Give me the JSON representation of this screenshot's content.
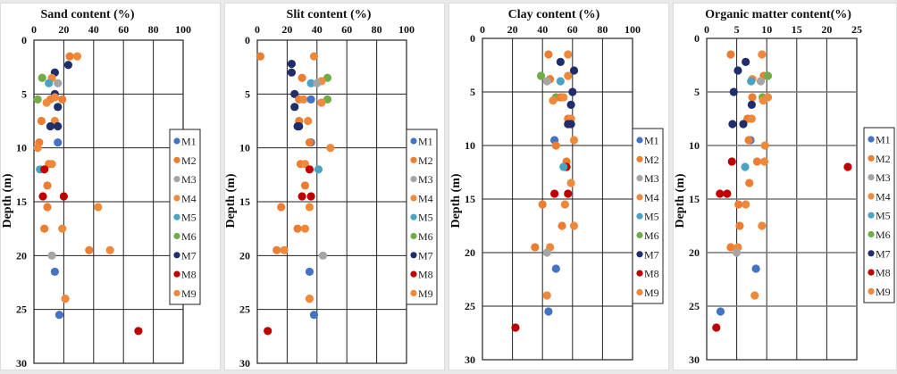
{
  "legend": [
    {
      "name": "M1",
      "color": "#4472C4"
    },
    {
      "name": "M2",
      "color": "#ED7D31"
    },
    {
      "name": "M3",
      "color": "#A5A5A5"
    },
    {
      "name": "M4",
      "color": "#F08A3C"
    },
    {
      "name": "M5",
      "color": "#4BA3C3"
    },
    {
      "name": "M6",
      "color": "#70AD47"
    },
    {
      "name": "M7",
      "color": "#1F2D6B"
    },
    {
      "name": "M8",
      "color": "#C00000"
    },
    {
      "name": "M9",
      "color": "#F0883A"
    }
  ],
  "chart_data": [
    {
      "type": "scatter",
      "title": "Sand content (%)",
      "xlabel": "",
      "ylabel": "Depth (m)",
      "xlim": [
        0,
        100
      ],
      "ylim": [
        0,
        30
      ],
      "y_inverted": true,
      "xticks": [
        "0",
        "20",
        "40",
        "60",
        "80",
        "100"
      ],
      "yticks": [
        "0",
        "5",
        "10",
        "15",
        "20",
        "25",
        "30"
      ],
      "grid": true,
      "legend_position": "right",
      "points": [
        {
          "series": "M2",
          "x": 24,
          "y": 1.5
        },
        {
          "series": "M9",
          "x": 29,
          "y": 1.5
        },
        {
          "series": "M7",
          "x": 23,
          "y": 2.3
        },
        {
          "series": "M7",
          "x": 14,
          "y": 3
        },
        {
          "series": "M6",
          "x": 5.5,
          "y": 3.5
        },
        {
          "series": "M4",
          "x": 12,
          "y": 3.5
        },
        {
          "series": "M5",
          "x": 10,
          "y": 4
        },
        {
          "series": "M3",
          "x": 16,
          "y": 4
        },
        {
          "series": "M7",
          "x": 14,
          "y": 5
        },
        {
          "series": "M6",
          "x": 2.5,
          "y": 5.5
        },
        {
          "series": "M2",
          "x": 11,
          "y": 5.5
        },
        {
          "series": "M9",
          "x": 14,
          "y": 5.3
        },
        {
          "series": "M4",
          "x": 8.5,
          "y": 5.8
        },
        {
          "series": "M2",
          "x": 19,
          "y": 5.5
        },
        {
          "series": "M7",
          "x": 16,
          "y": 6.2
        },
        {
          "series": "M2",
          "x": 5,
          "y": 7.5
        },
        {
          "series": "M9",
          "x": 14,
          "y": 7.5
        },
        {
          "series": "M7",
          "x": 11,
          "y": 8
        },
        {
          "series": "M7",
          "x": 16,
          "y": 8
        },
        {
          "series": "M2",
          "x": 3.5,
          "y": 9.5
        },
        {
          "series": "M9",
          "x": 2.5,
          "y": 10
        },
        {
          "series": "M1",
          "x": 16,
          "y": 9.5
        },
        {
          "series": "M2",
          "x": 10,
          "y": 11.5
        },
        {
          "series": "M9",
          "x": 12,
          "y": 11.5
        },
        {
          "series": "M5",
          "x": 4,
          "y": 12
        },
        {
          "series": "M8",
          "x": 7,
          "y": 12
        },
        {
          "series": "M2",
          "x": 9,
          "y": 13.5
        },
        {
          "series": "M8",
          "x": 6,
          "y": 14.5
        },
        {
          "series": "M8",
          "x": 20,
          "y": 14.5
        },
        {
          "series": "M2",
          "x": 9,
          "y": 15.5
        },
        {
          "series": "M9",
          "x": 43,
          "y": 15.5
        },
        {
          "series": "M2",
          "x": 7,
          "y": 17.5
        },
        {
          "series": "M9",
          "x": 19,
          "y": 17.5
        },
        {
          "series": "M2",
          "x": 37,
          "y": 19.5
        },
        {
          "series": "M9",
          "x": 51,
          "y": 19.5
        },
        {
          "series": "M3",
          "x": 12,
          "y": 20
        },
        {
          "series": "M1",
          "x": 14,
          "y": 21.5
        },
        {
          "series": "M9",
          "x": 21,
          "y": 24
        },
        {
          "series": "M1",
          "x": 17,
          "y": 25.5
        },
        {
          "series": "M8",
          "x": 70,
          "y": 27
        }
      ]
    },
    {
      "type": "scatter",
      "title": "Slit content (%)",
      "xlabel": "",
      "ylabel": "Depth (m)",
      "xlim": [
        0,
        100
      ],
      "ylim": [
        0,
        30
      ],
      "y_inverted": true,
      "xticks": [
        "0",
        "20",
        "40",
        "60",
        "80",
        "100"
      ],
      "yticks": [
        "0",
        "5",
        "10",
        "15",
        "20",
        "25",
        "30"
      ],
      "grid": true,
      "legend_position": "right",
      "points": [
        {
          "series": "M2",
          "x": 2,
          "y": 1.5
        },
        {
          "series": "M9",
          "x": 38,
          "y": 1.5
        },
        {
          "series": "M7",
          "x": 23,
          "y": 2.2
        },
        {
          "series": "M7",
          "x": 23,
          "y": 3
        },
        {
          "series": "M2",
          "x": 30,
          "y": 3.5
        },
        {
          "series": "M6",
          "x": 47,
          "y": 3.5
        },
        {
          "series": "M4",
          "x": 43,
          "y": 3.8
        },
        {
          "series": "M5",
          "x": 36,
          "y": 4
        },
        {
          "series": "M3",
          "x": 40,
          "y": 4
        },
        {
          "series": "M7",
          "x": 25,
          "y": 5
        },
        {
          "series": "M2",
          "x": 28,
          "y": 5.5
        },
        {
          "series": "M9",
          "x": 31,
          "y": 5.5
        },
        {
          "series": "M1",
          "x": 36,
          "y": 5.5
        },
        {
          "series": "M6",
          "x": 47,
          "y": 5.5
        },
        {
          "series": "M4",
          "x": 43,
          "y": 5.8
        },
        {
          "series": "M7",
          "x": 25,
          "y": 6.2
        },
        {
          "series": "M2",
          "x": 28,
          "y": 7.5
        },
        {
          "series": "M9",
          "x": 34,
          "y": 7.5
        },
        {
          "series": "M7",
          "x": 27,
          "y": 8
        },
        {
          "series": "M7",
          "x": 28,
          "y": 8
        },
        {
          "series": "M1",
          "x": 36,
          "y": 9.5
        },
        {
          "series": "M2",
          "x": 35,
          "y": 9.5
        },
        {
          "series": "M9",
          "x": 49,
          "y": 10
        },
        {
          "series": "M2",
          "x": 29,
          "y": 11.5
        },
        {
          "series": "M4",
          "x": 32,
          "y": 11.5
        },
        {
          "series": "M8",
          "x": 35,
          "y": 12
        },
        {
          "series": "M5",
          "x": 41,
          "y": 12
        },
        {
          "series": "M2",
          "x": 32,
          "y": 13.5
        },
        {
          "series": "M8",
          "x": 30,
          "y": 14.5
        },
        {
          "series": "M8",
          "x": 36,
          "y": 14.5
        },
        {
          "series": "M2",
          "x": 16,
          "y": 15.5
        },
        {
          "series": "M9",
          "x": 35,
          "y": 15.5
        },
        {
          "series": "M2",
          "x": 27,
          "y": 17.5
        },
        {
          "series": "M9",
          "x": 32,
          "y": 17.5
        },
        {
          "series": "M2",
          "x": 13,
          "y": 19.5
        },
        {
          "series": "M9",
          "x": 18,
          "y": 19.5
        },
        {
          "series": "M3",
          "x": 44,
          "y": 20
        },
        {
          "series": "M1",
          "x": 35,
          "y": 21.5
        },
        {
          "series": "M9",
          "x": 35,
          "y": 24
        },
        {
          "series": "M1",
          "x": 38,
          "y": 25.5
        },
        {
          "series": "M8",
          "x": 7,
          "y": 27
        }
      ]
    },
    {
      "type": "scatter",
      "title": "Clay content (%)",
      "xlabel": "",
      "ylabel": "Depth (m)",
      "xlim": [
        0,
        100
      ],
      "ylim": [
        0,
        30
      ],
      "y_inverted": true,
      "xticks": [
        "0",
        "20",
        "40",
        "60",
        "80",
        "100"
      ],
      "yticks": [
        "0",
        "5",
        "10",
        "15",
        "20",
        "25",
        "30"
      ],
      "grid": true,
      "legend_position": "right",
      "points": [
        {
          "series": "M2",
          "x": 44,
          "y": 1.5
        },
        {
          "series": "M9",
          "x": 57,
          "y": 1.5
        },
        {
          "series": "M7",
          "x": 52,
          "y": 2.2
        },
        {
          "series": "M7",
          "x": 61,
          "y": 3
        },
        {
          "series": "M6",
          "x": 39,
          "y": 3.5
        },
        {
          "series": "M2",
          "x": 45,
          "y": 3.8
        },
        {
          "series": "M3",
          "x": 43,
          "y": 4
        },
        {
          "series": "M9",
          "x": 57,
          "y": 3.5
        },
        {
          "series": "M5",
          "x": 52,
          "y": 4
        },
        {
          "series": "M7",
          "x": 60,
          "y": 5
        },
        {
          "series": "M6",
          "x": 49,
          "y": 5.5
        },
        {
          "series": "M2",
          "x": 52,
          "y": 5.5
        },
        {
          "series": "M4",
          "x": 54,
          "y": 5.5
        },
        {
          "series": "M9",
          "x": 47,
          "y": 5.8
        },
        {
          "series": "M7",
          "x": 59,
          "y": 6.2
        },
        {
          "series": "M2",
          "x": 57,
          "y": 7.5
        },
        {
          "series": "M9",
          "x": 59,
          "y": 7.5
        },
        {
          "series": "M7",
          "x": 57,
          "y": 8
        },
        {
          "series": "M7",
          "x": 59,
          "y": 8
        },
        {
          "series": "M1",
          "x": 48,
          "y": 9.5
        },
        {
          "series": "M9",
          "x": 61,
          "y": 9.5
        },
        {
          "series": "M2",
          "x": 49,
          "y": 10
        },
        {
          "series": "M2",
          "x": 56,
          "y": 11.5
        },
        {
          "series": "M8",
          "x": 56,
          "y": 12
        },
        {
          "series": "M5",
          "x": 54,
          "y": 12
        },
        {
          "series": "M4",
          "x": 59,
          "y": 13.5
        },
        {
          "series": "M8",
          "x": 48,
          "y": 14.5
        },
        {
          "series": "M8",
          "x": 57,
          "y": 14.5
        },
        {
          "series": "M2",
          "x": 40,
          "y": 15.5
        },
        {
          "series": "M9",
          "x": 55,
          "y": 15.5
        },
        {
          "series": "M2",
          "x": 53,
          "y": 17.5
        },
        {
          "series": "M9",
          "x": 61,
          "y": 17.5
        },
        {
          "series": "M2",
          "x": 35,
          "y": 19.5
        },
        {
          "series": "M9",
          "x": 45,
          "y": 19.5
        },
        {
          "series": "M3",
          "x": 43,
          "y": 20
        },
        {
          "series": "M1",
          "x": 49,
          "y": 21.5
        },
        {
          "series": "M9",
          "x": 43,
          "y": 24
        },
        {
          "series": "M1",
          "x": 44,
          "y": 25.5
        },
        {
          "series": "M8",
          "x": 22,
          "y": 27
        }
      ]
    },
    {
      "type": "scatter",
      "title": "Organic matter content(%)",
      "xlabel": "",
      "ylabel": "Depth (m)",
      "xlim": [
        0,
        25
      ],
      "ylim": [
        0,
        30
      ],
      "y_inverted": true,
      "xticks": [
        "0",
        "5",
        "10",
        "15",
        "20",
        "25"
      ],
      "yticks": [
        "0",
        "5",
        "10",
        "15",
        "20",
        "25",
        "30"
      ],
      "grid": true,
      "legend_position": "right",
      "points": [
        {
          "series": "M2",
          "x": 4,
          "y": 1.5
        },
        {
          "series": "M9",
          "x": 9.2,
          "y": 1.5
        },
        {
          "series": "M7",
          "x": 6.5,
          "y": 2.2
        },
        {
          "series": "M7",
          "x": 5.2,
          "y": 3
        },
        {
          "series": "M2",
          "x": 9.5,
          "y": 3.5
        },
        {
          "series": "M6",
          "x": 10.2,
          "y": 3.5
        },
        {
          "series": "M4",
          "x": 7.6,
          "y": 3.8
        },
        {
          "series": "M5",
          "x": 7.4,
          "y": 4
        },
        {
          "series": "M3",
          "x": 9,
          "y": 4
        },
        {
          "series": "M7",
          "x": 4.5,
          "y": 5
        },
        {
          "series": "M2",
          "x": 7.6,
          "y": 5.5
        },
        {
          "series": "M6",
          "x": 9.3,
          "y": 5.5
        },
        {
          "series": "M9",
          "x": 10.2,
          "y": 5.5
        },
        {
          "series": "M4",
          "x": 9.4,
          "y": 5.8
        },
        {
          "series": "M7",
          "x": 7.5,
          "y": 6.2
        },
        {
          "series": "M2",
          "x": 6.8,
          "y": 7.5
        },
        {
          "series": "M9",
          "x": 7.5,
          "y": 7.5
        },
        {
          "series": "M7",
          "x": 4.3,
          "y": 8
        },
        {
          "series": "M7",
          "x": 6.1,
          "y": 8
        },
        {
          "series": "M1",
          "x": 7.3,
          "y": 9.5
        },
        {
          "series": "M2",
          "x": 7,
          "y": 9.5
        },
        {
          "series": "M9",
          "x": 9.7,
          "y": 10
        },
        {
          "series": "M2",
          "x": 8.4,
          "y": 11.5
        },
        {
          "series": "M9",
          "x": 9.6,
          "y": 11.5
        },
        {
          "series": "M8",
          "x": 4.2,
          "y": 11.5
        },
        {
          "series": "M5",
          "x": 6.4,
          "y": 12
        },
        {
          "series": "M8",
          "x": 23.5,
          "y": 12
        },
        {
          "series": "M2",
          "x": 7.1,
          "y": 13.5
        },
        {
          "series": "M8",
          "x": 2.2,
          "y": 14.5
        },
        {
          "series": "M8",
          "x": 3.4,
          "y": 14.5
        },
        {
          "series": "M2",
          "x": 5.3,
          "y": 15.5
        },
        {
          "series": "M9",
          "x": 6.5,
          "y": 15.5
        },
        {
          "series": "M2",
          "x": 5.5,
          "y": 17.5
        },
        {
          "series": "M9",
          "x": 9.2,
          "y": 17.5
        },
        {
          "series": "M2",
          "x": 4,
          "y": 19.5
        },
        {
          "series": "M9",
          "x": 5.2,
          "y": 19.5
        },
        {
          "series": "M3",
          "x": 5,
          "y": 20
        },
        {
          "series": "M1",
          "x": 8.2,
          "y": 21.5
        },
        {
          "series": "M9",
          "x": 8,
          "y": 24
        },
        {
          "series": "M1",
          "x": 2.3,
          "y": 25.5
        },
        {
          "series": "M8",
          "x": 1.6,
          "y": 27
        }
      ]
    }
  ]
}
